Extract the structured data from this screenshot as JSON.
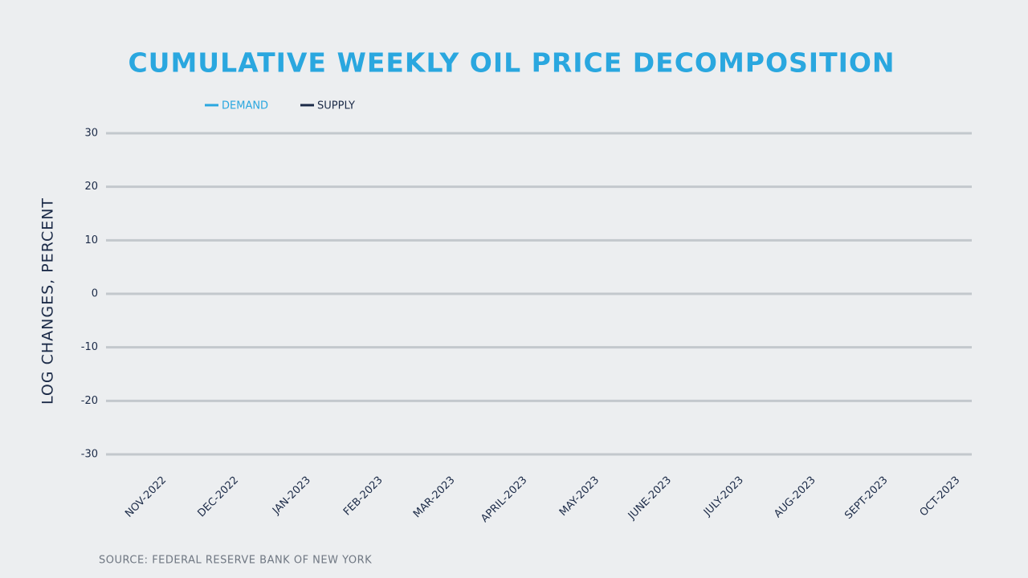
{
  "chart_data": {
    "type": "line",
    "title": "CUMULATIVE WEEKLY OIL PRICE DECOMPOSITION",
    "y_label": "LOG CHANGES, PERCENT",
    "source": "SOURCE: FEDERAL RESERVE BANK OF NEW YORK",
    "categories": [
      "NOV-2022",
      "DEC-2022",
      "JAN-2023",
      "FEB-2023",
      "MAR-2023",
      "APRIL-2023",
      "MAY-2023",
      "JUNE-2023",
      "JULY-2023",
      "AUG-2023",
      "SEPT-2023",
      "OCT-2023"
    ],
    "series": [
      {
        "name": "DEMAND",
        "color": "#2aa7df",
        "values": [
          null,
          null,
          null,
          null,
          null,
          null,
          null,
          null,
          null,
          null,
          null,
          null
        ]
      },
      {
        "name": "SUPPLY",
        "color": "#1b2a47",
        "values": [
          null,
          null,
          null,
          null,
          null,
          null,
          null,
          null,
          null,
          null,
          null,
          null
        ]
      }
    ],
    "ylim": [
      -30,
      30
    ],
    "yticks": [
      -30,
      -20,
      -10,
      0,
      10,
      20,
      30
    ],
    "grid": true,
    "legend": "top-left"
  }
}
